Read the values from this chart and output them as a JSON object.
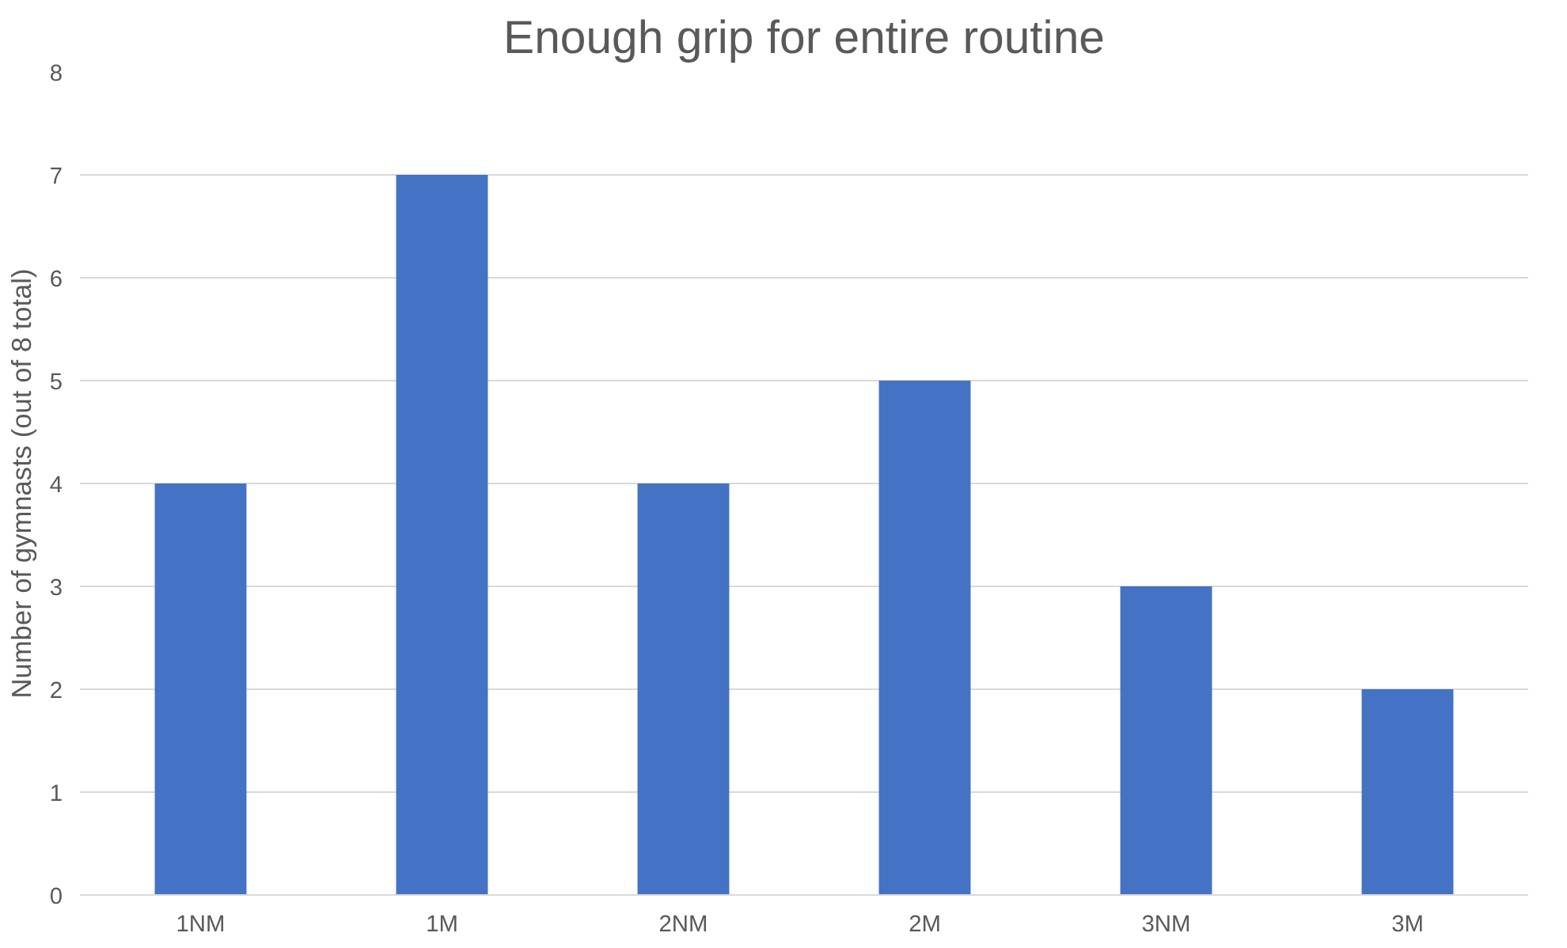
{
  "chart_data": {
    "type": "bar",
    "title": "Enough grip for entire routine",
    "ylabel": "Number of gymnasts (out of 8 total)",
    "categories": [
      "1NM",
      "1M",
      "2NM",
      "2M",
      "3NM",
      "3M"
    ],
    "values": [
      4,
      7,
      4,
      5,
      3,
      2
    ],
    "color": "#4472c4",
    "ylim": [
      0,
      8
    ],
    "yticks": [
      0,
      1,
      2,
      3,
      4,
      5,
      6,
      7,
      8
    ],
    "grid": "y"
  }
}
